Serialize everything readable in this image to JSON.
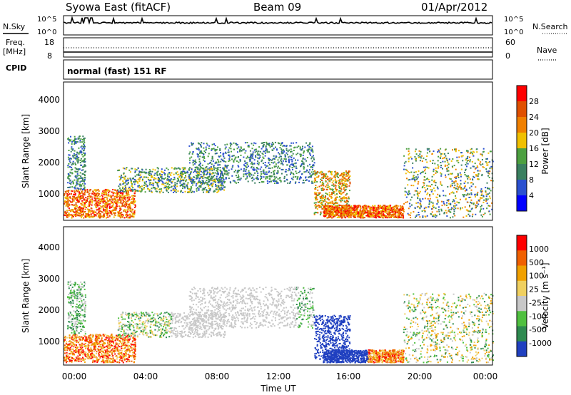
{
  "header": {
    "station": "Syowa East (fitACF)",
    "beam": "Beam 09",
    "date": "01/Apr/2012"
  },
  "noise_panel": {
    "left_label": "N.Sky",
    "right_label": "N.Search",
    "tick_top": "10^5",
    "tick_bottom": "10^0"
  },
  "freq_panel": {
    "left_label_line1": "Freq.",
    "left_label_line2": "[MHz]",
    "left_ticks": [
      "18",
      "8"
    ],
    "right_label": "Nave",
    "right_ticks": [
      "60",
      "0"
    ]
  },
  "cpid": {
    "label": "CPID",
    "text": "normal (fast) 151 RF"
  },
  "chart_data": [
    {
      "type": "heatmap",
      "name": "power",
      "ylabel": "Slant Range [km]",
      "xlabel": "",
      "ylim": [
        200,
        4600
      ],
      "yticks": [
        "1000",
        "2000",
        "3000",
        "4000"
      ],
      "colorbar_label": "Power [dB]",
      "colorbar_ticks": [
        "4",
        "8",
        "12",
        "16",
        "20",
        "24",
        "28"
      ],
      "colorbar_colors": [
        "#0000ff",
        "#2a50d0",
        "#3a8060",
        "#4ca040",
        "#f0c000",
        "#f08000",
        "#e05000",
        "#ff0000"
      ],
      "grid": false
    },
    {
      "type": "heatmap",
      "name": "velocity",
      "ylabel": "Slant Range [km]",
      "xlabel": "Time UT",
      "ylim": [
        200,
        4600
      ],
      "yticks": [
        "1000",
        "2000",
        "3000",
        "4000"
      ],
      "colorbar_label": "Velocity [m s⁻¹]",
      "colorbar_ticks": [
        "1000",
        "500",
        "100",
        "25",
        "-25",
        "-100",
        "-500",
        "-1000"
      ],
      "colorbar_colors": [
        "#2040c0",
        "#2e8a50",
        "#50c040",
        "#c8c8c8",
        "#f0d060",
        "#f0a000",
        "#f06000",
        "#ff0000"
      ],
      "grid": false
    }
  ],
  "x_axis": {
    "ticks": [
      "00:00",
      "04:00",
      "08:00",
      "12:00",
      "16:00",
      "20:00",
      "00:00"
    ],
    "label": "Time UT"
  }
}
